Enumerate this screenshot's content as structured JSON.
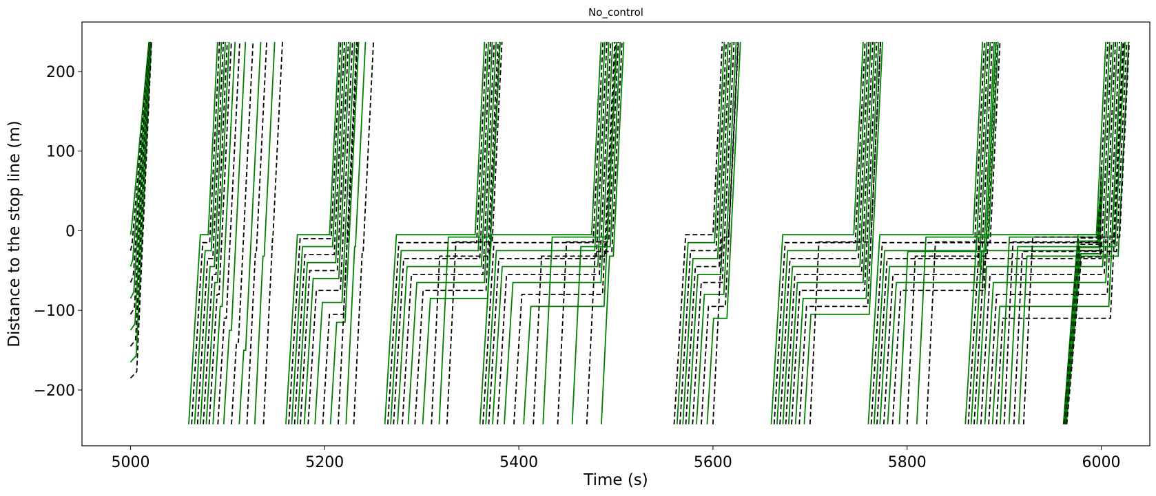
{
  "chart_data": {
    "type": "line",
    "title": "No_control",
    "xlabel": "Time (s)",
    "ylabel": "Distance to the stop line (m)",
    "xlim": [
      4950,
      6050
    ],
    "ylim": [
      -270,
      262
    ],
    "xticks": [
      5000,
      5200,
      5400,
      5600,
      5800,
      6000
    ],
    "xtick_labels": [
      "5000",
      "5200",
      "5400",
      "5600",
      "5800",
      "6000"
    ],
    "yticks": [
      -200,
      -100,
      0,
      100,
      200
    ],
    "ytick_labels": [
      "−200",
      "−100",
      "0",
      "100",
      "200"
    ],
    "grid": false,
    "legend": "none",
    "series_styles": [
      {
        "color": "#008000",
        "dash": "solid"
      },
      {
        "color": "#000000",
        "dash": "dashed"
      }
    ],
    "cycles": [
      {
        "start_x": 5000,
        "green_x": 5080,
        "queue_y": [
          -5,
          -15,
          -25,
          -35,
          -45,
          -55,
          -65,
          -80,
          -95,
          -110,
          -125,
          -140,
          -150
        ],
        "arrivals": [
          5060,
          5063,
          5066,
          5069,
          5072,
          5075,
          5078,
          5081,
          5085,
          5090,
          5096,
          5104,
          5112,
          5120,
          5128,
          5137
        ]
      },
      {
        "start_x": 5140,
        "green_x": 5205,
        "queue_y": [
          -5,
          -10,
          -20,
          -30,
          -40,
          -50,
          -60,
          -75,
          -90,
          -105,
          -115
        ],
        "arrivals": [
          5160,
          5163,
          5166,
          5169,
          5172,
          5175,
          5179,
          5183,
          5190,
          5198,
          5206,
          5214,
          5222,
          5230
        ]
      },
      {
        "start_x": 5250,
        "green_x": 5355,
        "queue_y": [
          -5,
          -15,
          -25,
          -35,
          -45,
          -55,
          -65,
          -75,
          -85
        ],
        "arrivals": [
          5262,
          5265,
          5268,
          5271,
          5275,
          5280,
          5286,
          5293,
          5301,
          5310,
          5318,
          5326
        ]
      },
      {
        "start_x": 5360,
        "green_x": 5475,
        "queue_y": [
          -5,
          -15,
          -25,
          -35,
          -45,
          -55,
          -65,
          -80,
          -95
        ],
        "arrivals": [
          5360,
          5363,
          5366,
          5369,
          5373,
          5378,
          5385,
          5395,
          5405,
          5415,
          5425,
          5440,
          5455,
          5470,
          5485
        ]
      },
      {
        "start_x": 5500,
        "green_x": 5600,
        "queue_y": [
          -5,
          -15,
          -25,
          -35,
          -45,
          -55,
          -65,
          -80,
          -95,
          -110
        ],
        "arrivals": [
          5560,
          5563,
          5566,
          5569,
          5572,
          5575,
          5579,
          5583,
          5588,
          5594,
          5600
        ]
      },
      {
        "start_x": 5600,
        "green_x": 5745,
        "queue_y": [
          -5,
          -15,
          -25,
          -35,
          -45,
          -55,
          -65,
          -75,
          -85,
          -95,
          -105
        ],
        "arrivals": [
          5660,
          5663,
          5666,
          5669,
          5672,
          5675,
          5678,
          5681,
          5685,
          5689,
          5694,
          5700
        ]
      },
      {
        "start_x": 5700,
        "green_x": 5868,
        "queue_y": [
          -5,
          -15,
          -25,
          -35,
          -45,
          -55,
          -65,
          -75
        ],
        "arrivals": [
          5760,
          5763,
          5766,
          5769,
          5772,
          5776,
          5780,
          5785,
          5792,
          5800,
          5810,
          5820
        ]
      },
      {
        "start_x": 5800,
        "green_x": 5995,
        "queue_y": [
          -5,
          -15,
          -25,
          -35,
          -45,
          -55,
          -65,
          -80,
          -95,
          -110
        ],
        "arrivals": [
          5860,
          5863,
          5866,
          5869,
          5872,
          5876,
          5880,
          5884,
          5888,
          5892,
          5896,
          5900,
          5905,
          5910,
          5915,
          5920
        ]
      }
    ],
    "free_flow_speed": 25,
    "upstream_y": -243,
    "downstream_y": 237
  }
}
